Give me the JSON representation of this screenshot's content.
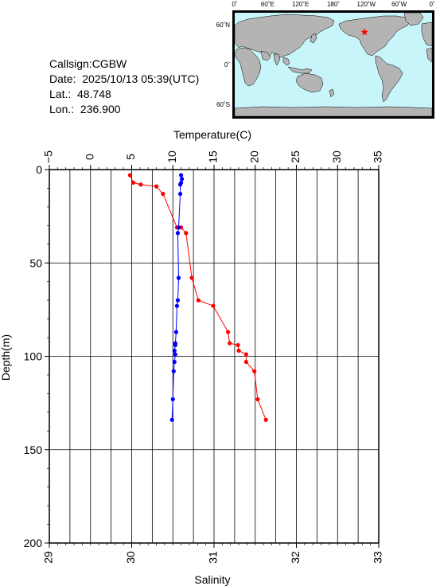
{
  "info": {
    "callsign": "Callsign:CGBW",
    "date": "Date:  2025/10/13 05:39(UTC)",
    "lat": "Lat.:  48.748",
    "lon": "Lon.:  236.900"
  },
  "map": {
    "lon_labels": [
      "0˚",
      "60˚E",
      "120˚E",
      "180˚",
      "120˚W",
      "60˚W",
      "0˚"
    ],
    "lat_labels": [
      "60˚N",
      "0˚",
      "60˚S"
    ],
    "marker_color": "#ff0000",
    "land_color": "#b4b4b4",
    "ocean_color": "#c8f5fa",
    "station": {
      "lon": 236.9,
      "lat": 48.748
    }
  },
  "chart_data": {
    "type": "line",
    "top_axis_label": "Temperature(C)",
    "bottom_axis_label": "Salinity",
    "ylabel": "Depth(m)",
    "temp_range": [
      -5,
      35
    ],
    "temp_ticks": [
      "−5",
      "0",
      "5",
      "10",
      "15",
      "20",
      "25",
      "30",
      "35"
    ],
    "sal_range": [
      29,
      33
    ],
    "sal_ticks": [
      "29",
      "30",
      "31",
      "32",
      "33"
    ],
    "depth_range": [
      0,
      200
    ],
    "depth_ticks": [
      "0",
      "50",
      "100",
      "150",
      "200"
    ],
    "grid": true,
    "series": [
      {
        "color": "#ff0000",
        "axis": "temperature",
        "points": [
          [
            4.8,
            3
          ],
          [
            5.2,
            7
          ],
          [
            6.1,
            8
          ],
          [
            8.0,
            9
          ],
          [
            8.8,
            13
          ],
          [
            10.5,
            31
          ],
          [
            11.0,
            31
          ],
          [
            11.6,
            34
          ],
          [
            12.3,
            58
          ],
          [
            13.1,
            70
          ],
          [
            14.9,
            73
          ],
          [
            16.7,
            87
          ],
          [
            16.9,
            93
          ],
          [
            17.9,
            94
          ],
          [
            18.0,
            97
          ],
          [
            18.9,
            99
          ],
          [
            18.9,
            103
          ],
          [
            19.9,
            108
          ],
          [
            20.3,
            123
          ],
          [
            21.3,
            134
          ]
        ]
      },
      {
        "color": "#0000ff",
        "axis": "salinity",
        "points": [
          [
            30.6,
            3
          ],
          [
            30.61,
            5
          ],
          [
            30.6,
            7
          ],
          [
            30.59,
            8
          ],
          [
            30.59,
            13
          ],
          [
            30.57,
            31
          ],
          [
            30.56,
            34
          ],
          [
            30.57,
            58
          ],
          [
            30.56,
            70
          ],
          [
            30.55,
            73
          ],
          [
            30.54,
            87
          ],
          [
            30.53,
            93
          ],
          [
            30.53,
            94
          ],
          [
            30.52,
            97
          ],
          [
            30.53,
            99
          ],
          [
            30.52,
            103
          ],
          [
            30.51,
            108
          ],
          [
            30.5,
            123
          ],
          [
            30.49,
            134
          ]
        ]
      }
    ]
  }
}
